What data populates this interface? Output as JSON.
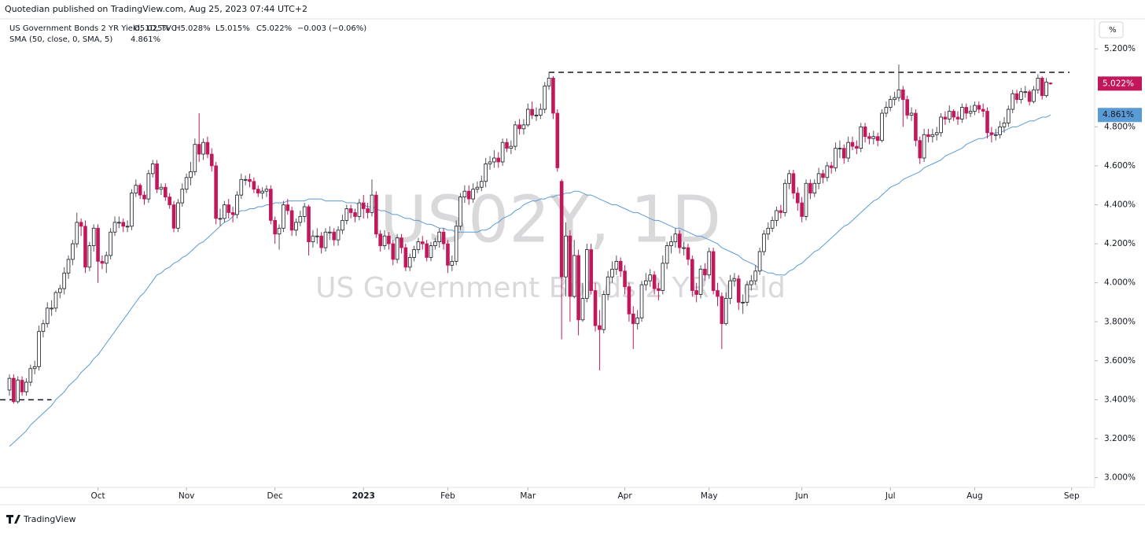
{
  "header": {
    "publisher": "Quotedian published on TradingView.com, Aug 25, 2023 07:44 UTC+2",
    "brand": "TradingView"
  },
  "chart_data": {
    "type": "candlestick",
    "title": "US Government Bonds 2 YR Yield, 1D, TVC",
    "legend_ohlc": [
      "O5.025%",
      "H5.028%",
      "L5.015%",
      "C5.022%",
      "−0.003 (−0.06%)"
    ],
    "unit_button": "%",
    "watermark": [
      "US02Y, 1D",
      "US Government Bonds 2 YR Yield"
    ],
    "up_color": "#ffffff",
    "down_color": "#c2185b",
    "last_label": "5.022%",
    "ylim": [
      2.95,
      5.35
    ],
    "yticks": [
      {
        "value": 3.0,
        "label": "3.000%"
      },
      {
        "value": 3.2,
        "label": "3.200%"
      },
      {
        "value": 3.4,
        "label": "3.400%"
      },
      {
        "value": 3.6,
        "label": "3.600%"
      },
      {
        "value": 3.8,
        "label": "3.800%"
      },
      {
        "value": 4.0,
        "label": "4.000%"
      },
      {
        "value": 4.2,
        "label": "4.200%"
      },
      {
        "value": 4.4,
        "label": "4.400%"
      },
      {
        "value": 4.6,
        "label": "4.600%"
      },
      {
        "value": 4.8,
        "label": "4.800%"
      },
      {
        "value": 5.2,
        "label": "5.200%"
      }
    ],
    "xticks": [
      {
        "value": 21,
        "label": "Oct"
      },
      {
        "value": 42,
        "label": "Nov"
      },
      {
        "value": 63,
        "label": "Dec"
      },
      {
        "value": 84,
        "label": "2023"
      },
      {
        "value": 104,
        "label": "Feb"
      },
      {
        "value": 123,
        "label": "Mar"
      },
      {
        "value": 146,
        "label": "Apr"
      },
      {
        "value": 166,
        "label": "May"
      },
      {
        "value": 188,
        "label": "Jun"
      },
      {
        "value": 209,
        "label": "Jul"
      },
      {
        "value": 229,
        "label": "Aug"
      },
      {
        "value": 252,
        "label": "Sep"
      }
    ],
    "hlines": [
      5.08,
      3.4
    ],
    "open": [
      3.45,
      3.51,
      3.39,
      3.5,
      3.44,
      3.49,
      3.56,
      3.57,
      3.75,
      3.79,
      3.87,
      3.87,
      3.95,
      3.97,
      4.05,
      4.12,
      4.2,
      4.31,
      4.29,
      4.08,
      4.19,
      4.28,
      4.11,
      4.1,
      4.14,
      4.26,
      4.31,
      4.31,
      4.29,
      4.29,
      4.46,
      4.5,
      4.45,
      4.43,
      4.56,
      4.61,
      4.48,
      4.49,
      4.44,
      4.4,
      4.28,
      4.41,
      4.48,
      4.54,
      4.57,
      4.71,
      4.66,
      4.72,
      4.66,
      4.6,
      4.33,
      4.33,
      4.4,
      4.36,
      4.35,
      4.45,
      4.53,
      4.53,
      4.52,
      4.48,
      4.46,
      4.47,
      4.48,
      4.32,
      4.25,
      4.28,
      4.4,
      4.37,
      4.27,
      4.31,
      4.34,
      4.39,
      4.21,
      4.24,
      4.24,
      4.18,
      4.26,
      4.26,
      4.22,
      4.27,
      4.32,
      4.38,
      4.36,
      4.34,
      4.41,
      4.38,
      4.36,
      4.45,
      4.25,
      4.19,
      4.24,
      4.2,
      4.12,
      4.23,
      4.18,
      4.08,
      4.13,
      4.17,
      4.21,
      4.2,
      4.13,
      4.19,
      4.21,
      4.26,
      4.2,
      4.09,
      4.11,
      4.29,
      4.44,
      4.47,
      4.43,
      4.48,
      4.49,
      4.52,
      4.61,
      4.62,
      4.64,
      4.62,
      4.72,
      4.69,
      4.7,
      4.81,
      4.79,
      4.81,
      4.89,
      4.86,
      4.86,
      4.89,
      5.01,
      5.05,
      4.87,
      4.52,
      4.03,
      4.24,
      3.93,
      4.14,
      3.81,
      3.92,
      4.17,
      3.96,
      3.78,
      3.76,
      3.94,
      4.03,
      4.07,
      4.11,
      4.06,
      3.98,
      3.84,
      3.79,
      3.82,
      3.99,
      4.01,
      4.04,
      3.97,
      3.96,
      4.1,
      4.19,
      4.21,
      4.25,
      4.18,
      4.18,
      4.12,
      3.96,
      3.94,
      4.07,
      4.04,
      4.16,
      3.96,
      3.93,
      3.79,
      3.92,
      4.01,
      4.02,
      3.9,
      3.9,
      3.99,
      4.01,
      4.06,
      4.16,
      4.25,
      4.28,
      4.32,
      4.37,
      4.36,
      4.51,
      4.56,
      4.46,
      4.41,
      4.34,
      4.51,
      4.46,
      4.51,
      4.56,
      4.54,
      4.6,
      4.59,
      4.69,
      4.69,
      4.64,
      4.72,
      4.7,
      4.69,
      4.8,
      4.75,
      4.74,
      4.75,
      4.73,
      4.87,
      4.9,
      4.94,
      4.95,
      4.99,
      4.94,
      4.86,
      4.87,
      4.73,
      4.64,
      4.76,
      4.75,
      4.76,
      4.77,
      4.85,
      4.84,
      4.88,
      4.85,
      4.84,
      4.9,
      4.87,
      4.88,
      4.91,
      4.89,
      4.88,
      4.77,
      4.76,
      4.76,
      4.8,
      4.82,
      4.89,
      4.97,
      4.94,
      4.98,
      4.98,
      4.93,
      4.99,
      5.05,
      4.96,
      5.025
    ],
    "high": [
      3.53,
      3.53,
      3.52,
      3.52,
      3.51,
      3.58,
      3.6,
      3.78,
      3.81,
      3.9,
      3.91,
      3.96,
      3.99,
      4.08,
      4.14,
      4.22,
      4.36,
      4.33,
      4.32,
      4.21,
      4.3,
      4.3,
      4.14,
      4.16,
      4.28,
      4.34,
      4.34,
      4.33,
      4.32,
      4.48,
      4.53,
      4.51,
      4.47,
      4.58,
      4.63,
      4.63,
      4.51,
      4.51,
      4.46,
      4.42,
      4.43,
      4.51,
      4.56,
      4.62,
      4.74,
      4.87,
      4.74,
      4.75,
      4.69,
      4.62,
      4.38,
      4.42,
      4.43,
      4.39,
      4.47,
      4.56,
      4.55,
      4.56,
      4.54,
      4.5,
      4.49,
      4.5,
      4.5,
      4.34,
      4.3,
      4.42,
      4.43,
      4.39,
      4.33,
      4.37,
      4.41,
      4.4,
      4.27,
      4.28,
      4.26,
      4.28,
      4.29,
      4.28,
      4.29,
      4.35,
      4.4,
      4.4,
      4.38,
      4.43,
      4.45,
      4.41,
      4.53,
      4.47,
      4.27,
      4.27,
      4.26,
      4.22,
      4.25,
      4.25,
      4.2,
      4.15,
      4.19,
      4.23,
      4.24,
      4.22,
      4.21,
      4.23,
      4.28,
      4.28,
      4.22,
      4.14,
      4.32,
      4.46,
      4.5,
      4.5,
      4.51,
      4.52,
      4.55,
      4.64,
      4.65,
      4.68,
      4.67,
      4.74,
      4.74,
      4.73,
      4.83,
      4.84,
      4.84,
      4.92,
      4.93,
      4.9,
      4.92,
      5.03,
      5.08,
      5.06,
      4.89,
      4.53,
      4.31,
      4.27,
      4.22,
      4.17,
      4.0,
      4.2,
      4.2,
      4.0,
      3.86,
      3.96,
      4.06,
      4.11,
      4.14,
      4.13,
      4.09,
      4.0,
      3.88,
      3.86,
      4.01,
      4.05,
      4.07,
      4.06,
      4.0,
      4.14,
      4.21,
      4.24,
      4.28,
      4.27,
      4.21,
      4.2,
      4.14,
      4.0,
      4.09,
      4.1,
      4.18,
      4.18,
      4.0,
      3.95,
      3.95,
      4.04,
      4.05,
      4.04,
      3.94,
      4.01,
      4.04,
      4.09,
      4.18,
      4.27,
      4.31,
      4.34,
      4.39,
      4.4,
      4.53,
      4.58,
      4.58,
      4.49,
      4.44,
      4.53,
      4.53,
      4.53,
      4.59,
      4.58,
      4.62,
      4.62,
      4.72,
      4.73,
      4.71,
      4.75,
      4.75,
      4.73,
      4.82,
      4.82,
      4.77,
      4.78,
      4.77,
      4.89,
      4.93,
      4.96,
      4.98,
      5.12,
      5.01,
      4.96,
      4.9,
      4.89,
      4.75,
      4.79,
      4.79,
      4.79,
      4.8,
      4.87,
      4.88,
      4.91,
      4.89,
      4.88,
      4.92,
      4.92,
      4.91,
      4.93,
      4.93,
      4.92,
      4.9,
      4.8,
      4.79,
      4.83,
      4.85,
      4.91,
      4.99,
      4.99,
      5.0,
      5.01,
      4.99,
      5.01,
      5.07,
      5.06,
      5.05,
      5.028
    ],
    "low": [
      3.42,
      3.38,
      3.38,
      3.42,
      3.42,
      3.47,
      3.53,
      3.55,
      3.72,
      3.77,
      3.83,
      3.85,
      3.92,
      3.94,
      4.02,
      4.09,
      4.18,
      4.24,
      4.05,
      4.06,
      4.16,
      4.0,
      4.07,
      4.05,
      4.12,
      4.24,
      4.28,
      4.26,
      4.26,
      4.27,
      4.44,
      4.43,
      4.4,
      4.41,
      4.54,
      4.46,
      4.45,
      4.42,
      4.38,
      4.26,
      4.26,
      4.39,
      4.46,
      4.5,
      4.55,
      4.62,
      4.63,
      4.64,
      4.57,
      4.3,
      4.29,
      4.31,
      4.33,
      4.31,
      4.33,
      4.43,
      4.5,
      4.49,
      4.46,
      4.44,
      4.43,
      4.44,
      4.3,
      4.2,
      4.17,
      4.26,
      4.35,
      4.24,
      4.24,
      4.29,
      4.31,
      4.14,
      4.18,
      4.2,
      4.15,
      4.16,
      4.22,
      4.19,
      4.19,
      4.25,
      4.3,
      4.33,
      4.31,
      4.32,
      4.33,
      4.33,
      4.34,
      4.23,
      4.16,
      4.17,
      4.17,
      4.09,
      4.1,
      4.15,
      4.06,
      4.06,
      4.11,
      4.15,
      4.17,
      4.11,
      4.11,
      4.17,
      4.18,
      4.17,
      4.05,
      4.06,
      4.09,
      4.27,
      4.41,
      4.4,
      4.41,
      4.46,
      4.47,
      4.49,
      4.58,
      4.59,
      4.59,
      4.6,
      4.67,
      4.66,
      4.68,
      4.76,
      4.76,
      4.8,
      4.84,
      4.83,
      4.84,
      4.87,
      4.99,
      4.84,
      4.57,
      3.71,
      3.93,
      3.8,
      3.92,
      3.73,
      3.8,
      3.9,
      3.94,
      3.75,
      3.55,
      3.74,
      3.91,
      4.0,
      4.04,
      4.03,
      3.94,
      3.8,
      3.66,
      3.76,
      3.8,
      3.96,
      3.98,
      3.94,
      3.91,
      3.94,
      4.07,
      4.15,
      4.18,
      4.15,
      4.14,
      4.09,
      3.93,
      3.9,
      3.92,
      4.01,
      4.02,
      3.94,
      3.88,
      3.66,
      3.78,
      3.89,
      3.98,
      3.86,
      3.84,
      3.88,
      3.96,
      3.99,
      4.04,
      4.14,
      4.22,
      4.26,
      4.29,
      4.33,
      4.34,
      4.48,
      4.43,
      4.37,
      4.31,
      4.32,
      4.43,
      4.44,
      4.48,
      4.51,
      4.52,
      4.56,
      4.57,
      4.64,
      4.61,
      4.62,
      4.68,
      4.66,
      4.67,
      4.72,
      4.71,
      4.71,
      4.7,
      4.72,
      4.85,
      4.88,
      4.91,
      4.93,
      4.8,
      4.84,
      4.83,
      4.7,
      4.61,
      4.62,
      4.72,
      4.72,
      4.73,
      4.75,
      4.81,
      4.82,
      4.83,
      4.81,
      4.82,
      4.84,
      4.85,
      4.86,
      4.87,
      4.85,
      4.74,
      4.72,
      4.73,
      4.74,
      4.77,
      4.8,
      4.87,
      4.92,
      4.92,
      4.95,
      4.91,
      4.92,
      4.97,
      4.94,
      4.95,
      5.015
    ],
    "close": [
      3.51,
      3.39,
      3.5,
      3.44,
      3.49,
      3.56,
      3.57,
      3.75,
      3.79,
      3.87,
      3.87,
      3.95,
      3.97,
      4.05,
      4.12,
      4.2,
      4.31,
      4.29,
      4.08,
      4.19,
      4.28,
      4.11,
      4.1,
      4.14,
      4.26,
      4.31,
      4.31,
      4.29,
      4.29,
      4.46,
      4.5,
      4.45,
      4.43,
      4.56,
      4.61,
      4.48,
      4.49,
      4.44,
      4.4,
      4.28,
      4.41,
      4.48,
      4.54,
      4.57,
      4.71,
      4.66,
      4.72,
      4.66,
      4.6,
      4.33,
      4.33,
      4.4,
      4.36,
      4.35,
      4.45,
      4.53,
      4.53,
      4.52,
      4.48,
      4.46,
      4.47,
      4.48,
      4.32,
      4.25,
      4.28,
      4.4,
      4.37,
      4.27,
      4.31,
      4.34,
      4.39,
      4.21,
      4.24,
      4.24,
      4.18,
      4.26,
      4.26,
      4.22,
      4.27,
      4.32,
      4.38,
      4.36,
      4.34,
      4.41,
      4.38,
      4.36,
      4.45,
      4.25,
      4.19,
      4.24,
      4.2,
      4.12,
      4.23,
      4.18,
      4.08,
      4.13,
      4.17,
      4.21,
      4.2,
      4.13,
      4.19,
      4.21,
      4.26,
      4.2,
      4.09,
      4.11,
      4.29,
      4.44,
      4.47,
      4.43,
      4.48,
      4.49,
      4.52,
      4.61,
      4.62,
      4.64,
      4.62,
      4.72,
      4.69,
      4.7,
      4.81,
      4.79,
      4.81,
      4.89,
      4.86,
      4.86,
      4.89,
      5.01,
      5.05,
      4.87,
      4.59,
      4.03,
      4.24,
      3.93,
      4.14,
      3.81,
      3.92,
      4.17,
      3.96,
      3.78,
      3.76,
      3.94,
      4.03,
      4.07,
      4.11,
      4.06,
      3.98,
      3.84,
      3.79,
      3.82,
      3.99,
      4.01,
      4.04,
      3.97,
      3.96,
      4.1,
      4.19,
      4.21,
      4.25,
      4.18,
      4.18,
      4.12,
      3.96,
      3.94,
      4.07,
      4.04,
      4.16,
      3.96,
      3.93,
      3.79,
      3.92,
      4.01,
      4.02,
      3.9,
      3.9,
      3.99,
      4.01,
      4.06,
      4.16,
      4.25,
      4.28,
      4.32,
      4.37,
      4.36,
      4.51,
      4.56,
      4.46,
      4.41,
      4.34,
      4.51,
      4.46,
      4.51,
      4.56,
      4.54,
      4.6,
      4.59,
      4.69,
      4.69,
      4.64,
      4.72,
      4.7,
      4.69,
      4.8,
      4.75,
      4.74,
      4.75,
      4.73,
      4.87,
      4.9,
      4.94,
      4.95,
      4.99,
      4.94,
      4.86,
      4.87,
      4.73,
      4.64,
      4.76,
      4.75,
      4.76,
      4.77,
      4.85,
      4.84,
      4.88,
      4.85,
      4.84,
      4.9,
      4.87,
      4.88,
      4.91,
      4.89,
      4.88,
      4.77,
      4.76,
      4.76,
      4.8,
      4.82,
      4.89,
      4.97,
      4.94,
      4.98,
      4.98,
      4.93,
      4.99,
      5.05,
      4.96,
      5.03,
      5.022
    ],
    "indicator": {
      "name": "SMA (50, close, 0, SMA, 5)",
      "value_label": "4.861%",
      "color": "#5b9bd5",
      "values": [
        3.16,
        3.18,
        3.2,
        3.22,
        3.24,
        3.27,
        3.29,
        3.31,
        3.33,
        3.35,
        3.37,
        3.4,
        3.42,
        3.44,
        3.47,
        3.49,
        3.51,
        3.54,
        3.56,
        3.58,
        3.61,
        3.63,
        3.66,
        3.69,
        3.72,
        3.75,
        3.78,
        3.81,
        3.84,
        3.87,
        3.9,
        3.93,
        3.95,
        3.98,
        4.01,
        4.04,
        4.05,
        4.07,
        4.08,
        4.1,
        4.11,
        4.13,
        4.14,
        4.16,
        4.18,
        4.2,
        4.21,
        4.23,
        4.25,
        4.27,
        4.29,
        4.31,
        4.32,
        4.34,
        4.36,
        4.37,
        4.37,
        4.38,
        4.38,
        4.39,
        4.39,
        4.4,
        4.4,
        4.41,
        4.41,
        4.41,
        4.42,
        4.42,
        4.42,
        4.42,
        4.42,
        4.43,
        4.43,
        4.43,
        4.43,
        4.42,
        4.42,
        4.42,
        4.42,
        4.42,
        4.41,
        4.41,
        4.41,
        4.4,
        4.4,
        4.39,
        4.39,
        4.38,
        4.37,
        4.37,
        4.36,
        4.35,
        4.35,
        4.34,
        4.33,
        4.33,
        4.32,
        4.32,
        4.31,
        4.3,
        4.3,
        4.29,
        4.28,
        4.28,
        4.27,
        4.27,
        4.26,
        4.26,
        4.26,
        4.26,
        4.26,
        4.26,
        4.27,
        4.27,
        4.28,
        4.3,
        4.31,
        4.33,
        4.34,
        4.35,
        4.37,
        4.38,
        4.4,
        4.41,
        4.42,
        4.42,
        4.43,
        4.43,
        4.44,
        4.44,
        4.45,
        4.45,
        4.46,
        4.46,
        4.47,
        4.47,
        4.46,
        4.45,
        4.45,
        4.44,
        4.43,
        4.42,
        4.41,
        4.4,
        4.4,
        4.39,
        4.38,
        4.37,
        4.36,
        4.36,
        4.35,
        4.34,
        4.33,
        4.32,
        4.32,
        4.31,
        4.3,
        4.29,
        4.28,
        4.28,
        4.27,
        4.26,
        4.25,
        4.24,
        4.24,
        4.23,
        4.22,
        4.21,
        4.2,
        4.18,
        4.17,
        4.16,
        4.15,
        4.14,
        4.12,
        4.11,
        4.1,
        4.09,
        4.07,
        4.06,
        4.05,
        4.05,
        4.04,
        4.04,
        4.04,
        4.06,
        4.07,
        4.09,
        4.1,
        4.12,
        4.14,
        4.16,
        4.17,
        4.19,
        4.21,
        4.23,
        4.25,
        4.27,
        4.29,
        4.3,
        4.32,
        4.34,
        4.36,
        4.38,
        4.4,
        4.42,
        4.43,
        4.45,
        4.47,
        4.49,
        4.5,
        4.51,
        4.53,
        4.54,
        4.55,
        4.56,
        4.57,
        4.59,
        4.6,
        4.61,
        4.62,
        4.63,
        4.65,
        4.66,
        4.67,
        4.68,
        4.69,
        4.71,
        4.72,
        4.73,
        4.74,
        4.74,
        4.75,
        4.76,
        4.77,
        4.77,
        4.78,
        4.79,
        4.8,
        4.8,
        4.81,
        4.82,
        4.83,
        4.83,
        4.84,
        4.85,
        4.85,
        4.861
      ]
    }
  }
}
